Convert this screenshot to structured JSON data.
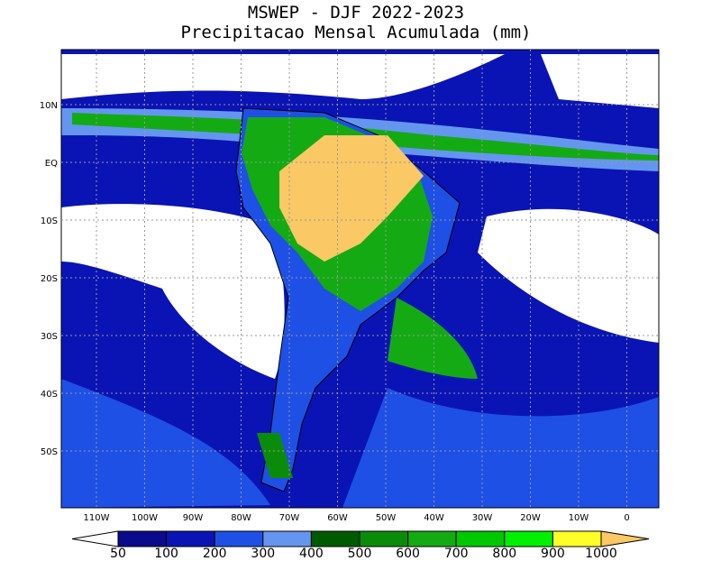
{
  "header": {
    "title": "MSWEP - DJF 2022-2023",
    "subtitle": "Precipitacao Mensal Acumulada (mm)"
  },
  "map": {
    "lat_labels": [
      "10N",
      "EQ",
      "10S",
      "20S",
      "30S",
      "40S",
      "50S"
    ],
    "lon_labels": [
      "110W",
      "100W",
      "90W",
      "80W",
      "70W",
      "60W",
      "50W",
      "40W",
      "30W",
      "20W",
      "10W",
      "0"
    ]
  },
  "colorbar": {
    "levels": [
      50,
      100,
      200,
      300,
      400,
      500,
      600,
      700,
      800,
      900,
      1000
    ],
    "colors": [
      "#ffffff",
      "#0a0a8c",
      "#0a14b4",
      "#1e50e6",
      "#6496f0",
      "#005a00",
      "#0a8c0a",
      "#14aa14",
      "#00c800",
      "#00f000",
      "#ffff28",
      "#fac864"
    ]
  }
}
